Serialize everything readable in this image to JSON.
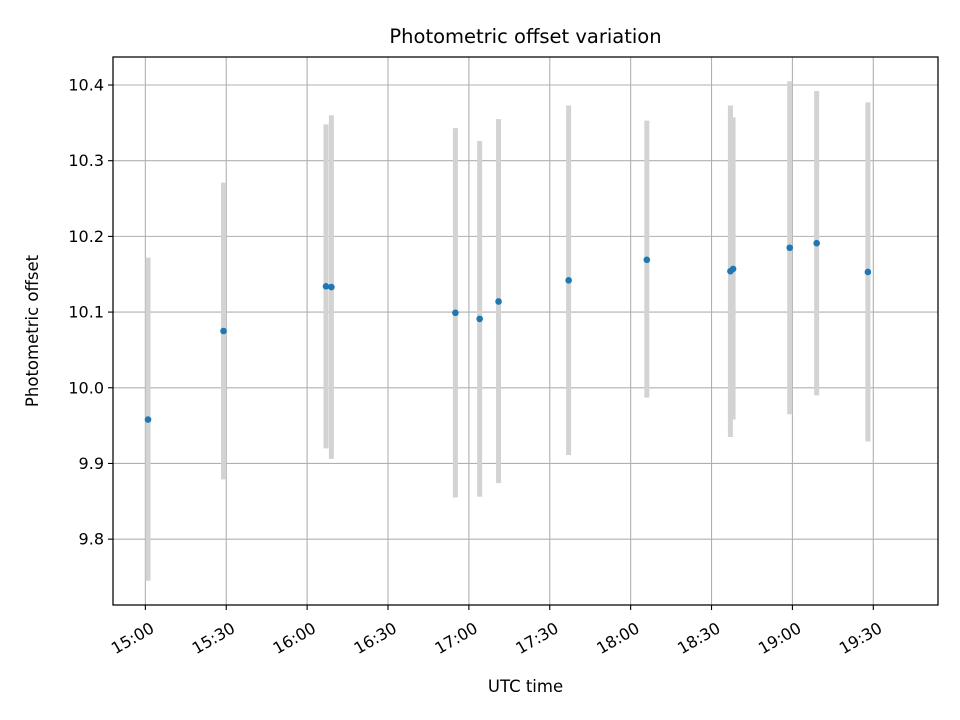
{
  "chart_data": {
    "type": "scatter",
    "title": "Photometric offset variation",
    "xlabel": "UTC time",
    "ylabel": "Photometric offset",
    "grid": true,
    "xlim": [
      "14:48",
      "19:54"
    ],
    "ylim": [
      9.713,
      10.437
    ],
    "x_ticks": [
      "15:00",
      "15:30",
      "16:00",
      "16:30",
      "17:00",
      "17:30",
      "18:00",
      "18:30",
      "19:00",
      "19:30"
    ],
    "y_ticks": [
      "9.8",
      "9.9",
      "10.0",
      "10.1",
      "10.2",
      "10.3",
      "10.4"
    ],
    "colors": {
      "points": "#1f77b4",
      "errorbars": "#d3d3d3",
      "grid": "#b0b0b0"
    },
    "series": [
      {
        "points": [
          {
            "x": "15:01",
            "y": 9.958,
            "low": 9.745,
            "high": 10.172
          },
          {
            "x": "15:29",
            "y": 10.075,
            "low": 9.879,
            "high": 10.271
          },
          {
            "x": "16:07",
            "y": 10.134,
            "low": 9.92,
            "high": 10.348
          },
          {
            "x": "16:09",
            "y": 10.133,
            "low": 9.906,
            "high": 10.36
          },
          {
            "x": "16:55",
            "y": 10.099,
            "low": 9.855,
            "high": 10.343
          },
          {
            "x": "17:04",
            "y": 10.091,
            "low": 9.856,
            "high": 10.326
          },
          {
            "x": "17:11",
            "y": 10.114,
            "low": 9.874,
            "high": 10.355
          },
          {
            "x": "17:37",
            "y": 10.142,
            "low": 9.911,
            "high": 10.373
          },
          {
            "x": "18:06",
            "y": 10.169,
            "low": 9.987,
            "high": 10.353
          },
          {
            "x": "18:37",
            "y": 10.154,
            "low": 9.935,
            "high": 10.373
          },
          {
            "x": "18:38",
            "y": 10.157,
            "low": 9.958,
            "high": 10.357
          },
          {
            "x": "18:59",
            "y": 10.185,
            "low": 9.965,
            "high": 10.405
          },
          {
            "x": "19:09",
            "y": 10.191,
            "low": 9.99,
            "high": 10.392
          },
          {
            "x": "19:28",
            "y": 10.153,
            "low": 9.929,
            "high": 10.377
          }
        ]
      }
    ]
  }
}
